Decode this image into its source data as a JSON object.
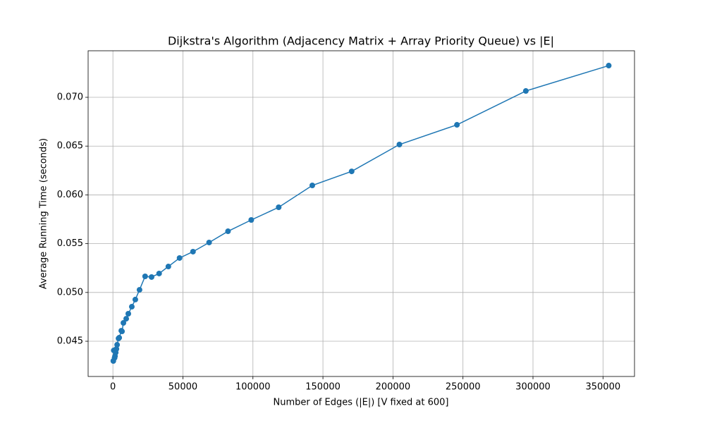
{
  "chart_data": {
    "type": "line",
    "title": "Dijkstra's Algorithm (Adjacency Matrix + Array Priority Queue) vs |E|",
    "x_label": "Number of Edges (|E|) [V fixed at 600]",
    "y_label": "Average Running Time (seconds)",
    "x": [
      300,
      600,
      1200,
      1500,
      2000,
      2500,
      3000,
      4000,
      4500,
      6000,
      6500,
      7500,
      9500,
      11000,
      13500,
      16000,
      19000,
      23000,
      27600,
      33000,
      39600,
      47600,
      57200,
      68700,
      82200,
      98800,
      118400,
      142400,
      170500,
      204600,
      245700,
      294900,
      354100
    ],
    "series": [
      {
        "name": "Running time",
        "color": "#1f77b4",
        "values": [
          0.04298,
          0.04406,
          0.0433,
          0.04348,
          0.04384,
          0.04421,
          0.04464,
          0.04529,
          0.04536,
          0.04608,
          0.04601,
          0.04688,
          0.04731,
          0.04782,
          0.04854,
          0.04927,
          0.05027,
          0.05165,
          0.05158,
          0.05194,
          0.05266,
          0.05353,
          0.05418,
          0.05512,
          0.05627,
          0.05743,
          0.05873,
          0.06097,
          0.06241,
          0.06516,
          0.06718,
          0.07065,
          0.07325
        ]
      }
    ],
    "xlim": [
      -17700,
      372500
    ],
    "ylim": [
      0.04139,
      0.07477
    ],
    "xticks": [
      0,
      50000,
      100000,
      150000,
      200000,
      250000,
      300000,
      350000
    ],
    "yticks": [
      0.045,
      {
        "value": 0.05,
        "label": "0.050"
      },
      0.055,
      {
        "value": 0.06,
        "label": "0.060"
      },
      0.065,
      {
        "value": 0.07,
        "label": "0.070"
      }
    ],
    "grid": true
  }
}
